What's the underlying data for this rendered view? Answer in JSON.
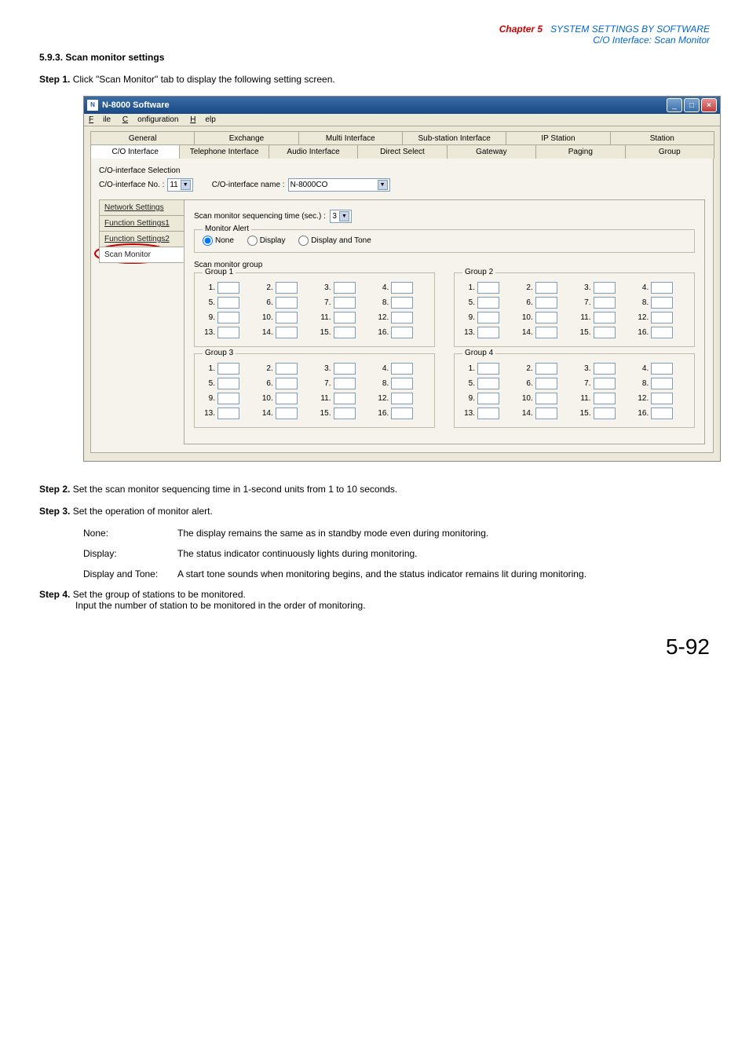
{
  "header": {
    "chapter": "Chapter 5",
    "chapter_title": "SYSTEM SETTINGS BY SOFTWARE",
    "subtitle": "C/O Interface: Scan Monitor"
  },
  "section": {
    "number": "5.9.3.",
    "title": "Scan monitor settings"
  },
  "steps": {
    "s1": {
      "label": "Step 1.",
      "text": "Click \"Scan Monitor\" tab to display the following setting screen."
    },
    "s2": {
      "label": "Step 2.",
      "text": "Set the scan monitor sequencing time in 1-second units from 1 to 10 seconds."
    },
    "s3": {
      "label": "Step 3.",
      "text": "Set the operation of monitor alert."
    },
    "s4": {
      "label": "Step 4.",
      "text1": "Set the group of stations to be monitored.",
      "text2": "Input the number of station to be monitored in the order of monitoring."
    }
  },
  "options": {
    "none": {
      "label": "None:",
      "desc": "The display remains the same as in standby mode even during monitoring."
    },
    "display": {
      "label": "Display:",
      "desc": "The status indicator continuously lights during monitoring."
    },
    "display_tone": {
      "label": "Display and Tone:",
      "desc": "A start tone sounds when monitoring begins, and the status indicator remains lit during monitoring."
    }
  },
  "pagenum": "5-92",
  "window": {
    "title": "N-8000 Software",
    "menu": {
      "file": "File",
      "config": "Configuration",
      "help": "Help"
    },
    "tabs_row1": [
      "General",
      "Exchange",
      "Multi Interface",
      "Sub-station Interface",
      "IP Station",
      "Station"
    ],
    "tabs_row2": [
      "C/O Interface",
      "Telephone Interface",
      "Audio Interface",
      "Direct Select",
      "Gateway",
      "Paging",
      "Group"
    ],
    "co_interface_selection": "C/O-interface Selection",
    "co_no_label": "C/O-interface No. :",
    "co_no_value": "11",
    "co_name_label": "C/O-interface name :",
    "co_name_value": "N-8000CO",
    "vtabs": [
      "Network Settings",
      "Function Settings1",
      "Function Settings2",
      "Scan Monitor"
    ],
    "seq_label": "Scan monitor sequencing time (sec.) :",
    "seq_value": "3",
    "monitor_alert_legend": "Monitor Alert",
    "radios": [
      "None",
      "Display",
      "Display and Tone"
    ],
    "smg_label": "Scan monitor group",
    "groups": {
      "g1": {
        "legend": "Group 1",
        "cells": [
          "1.",
          "2.",
          "3.",
          "4.",
          "5.",
          "6.",
          "7.",
          "8.",
          "9.",
          "10.",
          "11.",
          "12.",
          "13.",
          "14.",
          "15.",
          "16."
        ]
      },
      "g2": {
        "legend": "Group 2",
        "cells": [
          "1.",
          "2.",
          "3.",
          "4.",
          "5.",
          "6.",
          "7.",
          "8.",
          "9.",
          "10.",
          "11.",
          "12.",
          "13.",
          "14.",
          "15.",
          "16."
        ]
      },
      "g3": {
        "legend": "Group 3",
        "cells": [
          "1.",
          "2.",
          "3.",
          "4.",
          "5.",
          "6.",
          "7.",
          "8.",
          "9.",
          "10.",
          "11.",
          "12.",
          "13.",
          "14.",
          "15.",
          "16."
        ]
      },
      "g4": {
        "legend": "Group 4",
        "cells": [
          "1.",
          "2.",
          "3.",
          "4.",
          "5.",
          "6.",
          "7.",
          "8.",
          "9.",
          "10.",
          "11.",
          "12.",
          "13.",
          "14.",
          "15.",
          "16."
        ]
      }
    }
  },
  "colors": {
    "oval_stroke": "#c00000",
    "chapter": "#cc0000",
    "title": "#0066cc"
  }
}
